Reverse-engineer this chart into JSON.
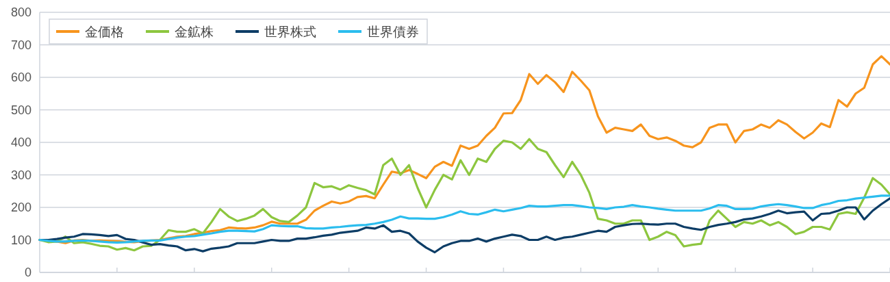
{
  "chart_data": {
    "type": "line",
    "categories": [
      null,
      null,
      null,
      null,
      null,
      null,
      null,
      null,
      null,
      null,
      null,
      null,
      null,
      null,
      null,
      null,
      null,
      null,
      null,
      null,
      null,
      null,
      null,
      null,
      null,
      null,
      null,
      null,
      null,
      null,
      null,
      null,
      null,
      null,
      null,
      null,
      null,
      null,
      null,
      null,
      null,
      null,
      null,
      null,
      null,
      null,
      null,
      null,
      null,
      null,
      null,
      null,
      null,
      null,
      null,
      null,
      null,
      null,
      null,
      null,
      null,
      null,
      null,
      null,
      null,
      null,
      null,
      null,
      null,
      null,
      null,
      null,
      null,
      null,
      null,
      null,
      null,
      null,
      null,
      null,
      null,
      null,
      null,
      null,
      null,
      null,
      null,
      null,
      null,
      null,
      null,
      null,
      null,
      null,
      null,
      null,
      null,
      null,
      null,
      null
    ],
    "series": [
      {
        "name": "金価格",
        "color": "#f7941d",
        "values": [
          100,
          98,
          95,
          90,
          98,
          100,
          97,
          98,
          97,
          96,
          94,
          93,
          96,
          98,
          100,
          105,
          110,
          112,
          118,
          122,
          127,
          130,
          138,
          136,
          135,
          138,
          145,
          156,
          150,
          150,
          150,
          162,
          190,
          205,
          218,
          212,
          218,
          232,
          235,
          228,
          270,
          310,
          305,
          315,
          303,
          290,
          325,
          340,
          328,
          390,
          380,
          390,
          420,
          445,
          489,
          490,
          530,
          610,
          580,
          607,
          585,
          555,
          617,
          590,
          560,
          480,
          430,
          445,
          440,
          435,
          455,
          420,
          410,
          415,
          405,
          390,
          385,
          400,
          445,
          455,
          455,
          400,
          435,
          440,
          455,
          445,
          468,
          455,
          432,
          412,
          430,
          458,
          447,
          530,
          510,
          550,
          568,
          640,
          665,
          640
        ]
      },
      {
        "name": "金鉱株",
        "color": "#8dc63f",
        "values": [
          100,
          93,
          95,
          110,
          90,
          93,
          88,
          82,
          80,
          70,
          75,
          68,
          80,
          82,
          100,
          130,
          125,
          125,
          133,
          120,
          155,
          195,
          172,
          158,
          165,
          175,
          195,
          170,
          158,
          155,
          175,
          200,
          275,
          262,
          265,
          255,
          268,
          260,
          253,
          240,
          330,
          350,
          300,
          330,
          260,
          200,
          254,
          300,
          286,
          345,
          300,
          350,
          340,
          380,
          405,
          400,
          380,
          410,
          380,
          370,
          330,
          293,
          340,
          300,
          245,
          165,
          160,
          150,
          150,
          160,
          160,
          100,
          110,
          125,
          115,
          80,
          85,
          88,
          160,
          190,
          165,
          140,
          155,
          150,
          160,
          145,
          155,
          140,
          118,
          125,
          140,
          140,
          132,
          180,
          185,
          180,
          230,
          290,
          270,
          240
        ]
      },
      {
        "name": "世界株式",
        "color": "#0d3d66",
        "values": [
          100,
          100,
          103,
          107,
          110,
          118,
          117,
          115,
          112,
          115,
          103,
          100,
          92,
          85,
          87,
          83,
          80,
          68,
          72,
          65,
          73,
          76,
          80,
          90,
          90,
          90,
          95,
          100,
          97,
          97,
          104,
          104,
          108,
          113,
          116,
          122,
          125,
          128,
          138,
          135,
          145,
          125,
          128,
          120,
          95,
          76,
          62,
          80,
          90,
          97,
          97,
          104,
          95,
          104,
          110,
          116,
          112,
          100,
          100,
          110,
          100,
          107,
          110,
          116,
          122,
          128,
          125,
          140,
          145,
          149,
          150,
          148,
          147,
          150,
          150,
          140,
          135,
          131,
          140,
          146,
          150,
          155,
          163,
          166,
          172,
          180,
          190,
          182,
          185,
          187,
          160,
          180,
          182,
          190,
          200,
          200,
          163,
          190,
          210,
          228
        ]
      },
      {
        "name": "世界債券",
        "color": "#2bbdee",
        "values": [
          100,
          97,
          95,
          95,
          97,
          98,
          97,
          95,
          93,
          92,
          93,
          95,
          97,
          98,
          98,
          103,
          107,
          110,
          112,
          116,
          120,
          125,
          128,
          128,
          127,
          126,
          133,
          145,
          143,
          142,
          142,
          136,
          135,
          135,
          138,
          140,
          143,
          145,
          146,
          150,
          155,
          162,
          172,
          166,
          166,
          165,
          165,
          170,
          178,
          188,
          180,
          178,
          185,
          193,
          188,
          193,
          198,
          205,
          203,
          203,
          205,
          207,
          207,
          204,
          200,
          198,
          195,
          200,
          202,
          207,
          203,
          200,
          196,
          193,
          190,
          190,
          190,
          190,
          197,
          207,
          205,
          195,
          195,
          196,
          203,
          207,
          210,
          207,
          203,
          198,
          198,
          207,
          212,
          220,
          222,
          227,
          230,
          233,
          236,
          236
        ]
      }
    ],
    "ylim": [
      0,
      800
    ],
    "yticks": [
      0,
      100,
      200,
      300,
      400,
      500,
      600,
      700,
      800
    ],
    "grid": "y",
    "legend": "top left"
  }
}
